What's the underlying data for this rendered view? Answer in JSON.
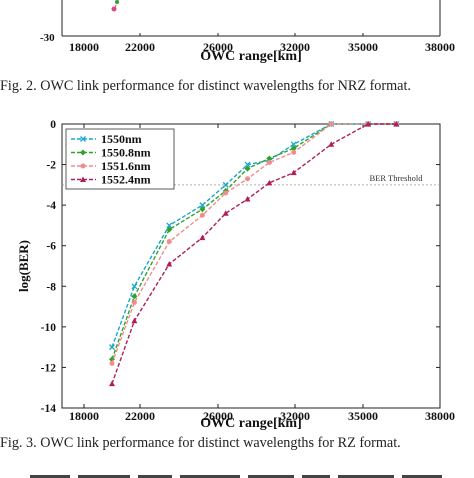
{
  "figure2": {
    "caption": "Fig. 2.   OWC link performance for distinct wavelengths for NRZ format.",
    "xlabel": "OWC range[km]",
    "ytick_bottom": "-30",
    "xticks": [
      "18000",
      "22000",
      "26000",
      "32000",
      "35000",
      "38000"
    ]
  },
  "figure3": {
    "caption": "Fig. 3.   OWC link performance for distinct wavelengths for RZ format.",
    "threshold_label": "BER Threshold"
  },
  "chart_data": [
    {
      "type": "line",
      "title": "",
      "xlabel": "OWC range[km]",
      "ylabel": "log(BER)",
      "xticks": [
        "18000",
        "22000",
        "26000",
        "32000",
        "35000",
        "38000"
      ],
      "yticks": [
        "0",
        "-2",
        "-4",
        "-6",
        "-8",
        "-10",
        "-12",
        "-14"
      ],
      "xlim": [
        18000,
        38000
      ],
      "ylim": [
        -14,
        0
      ],
      "grid": false,
      "legend_position": "top-left",
      "threshold": {
        "label": "BER Threshold",
        "y": -3
      },
      "series": [
        {
          "name": "1550nm",
          "color": "#1aa6c9",
          "marker": "x",
          "x": [
            20000,
            21600,
            23500,
            25200,
            26600,
            28300,
            30000,
            31900,
            33600,
            35200,
            36300
          ],
          "y": [
            -11.0,
            -8.0,
            -5.0,
            -4.0,
            -3.0,
            -2.0,
            -1.8,
            -1.0,
            0,
            0,
            0
          ]
        },
        {
          "name": "1550.8nm",
          "color": "#2fa12f",
          "marker": "diamond",
          "x": [
            20000,
            21600,
            23500,
            25200,
            26600,
            28300,
            30000,
            31900,
            33600,
            35200,
            36300
          ],
          "y": [
            -11.6,
            -8.5,
            -5.2,
            -4.2,
            -3.3,
            -2.2,
            -1.7,
            -1.2,
            0,
            0,
            0
          ]
        },
        {
          "name": "1551.6nm",
          "color": "#f08c8c",
          "marker": "circle",
          "x": [
            20000,
            21600,
            23500,
            25200,
            26600,
            28300,
            30000,
            31900,
            33600,
            35200,
            36300
          ],
          "y": [
            -11.8,
            -8.8,
            -5.8,
            -4.5,
            -3.4,
            -2.7,
            -1.9,
            -1.4,
            0,
            0,
            0
          ]
        },
        {
          "name": "1552.4nm",
          "color": "#b01e5a",
          "marker": "triangle",
          "x": [
            20000,
            21600,
            23500,
            25200,
            26600,
            28300,
            30000,
            31900,
            33600,
            35200,
            36300
          ],
          "y": [
            -12.8,
            -9.7,
            -6.9,
            -5.6,
            -4.4,
            -3.7,
            -2.9,
            -2.4,
            -1.0,
            0,
            0
          ]
        }
      ]
    }
  ]
}
